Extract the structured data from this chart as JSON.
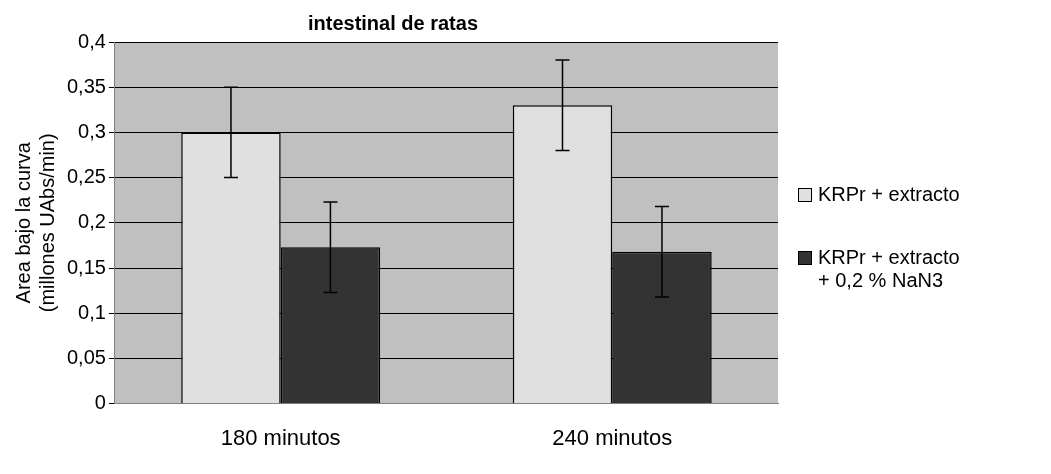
{
  "chart_data": {
    "type": "bar",
    "title": "intestinal de ratas",
    "ylabel": "Area bajo la curva\n(millones UAbs/min)",
    "categories": [
      "180 minutos",
      "240 minutos"
    ],
    "series": [
      {
        "name": "KRPr + extracto",
        "color": "#e0e0e0",
        "values": [
          0.3,
          0.33
        ],
        "errors": [
          0.05,
          0.05
        ]
      },
      {
        "name": "KRPr + extracto\n+ 0,2 % NaN3",
        "color": "#333333",
        "values": [
          0.173,
          0.168
        ],
        "errors": [
          0.05,
          0.05
        ]
      }
    ],
    "ylim": [
      0,
      0.4
    ],
    "yticks": [
      {
        "value": 0,
        "label": "0"
      },
      {
        "value": 0.05,
        "label": "0,05"
      },
      {
        "value": 0.1,
        "label": "0,1"
      },
      {
        "value": 0.15,
        "label": "0,15"
      },
      {
        "value": 0.2,
        "label": "0,2"
      },
      {
        "value": 0.25,
        "label": "0,25"
      },
      {
        "value": 0.3,
        "label": "0,3"
      },
      {
        "value": 0.35,
        "label": "0,35"
      },
      {
        "value": 0.4,
        "label": "0,4"
      }
    ],
    "grid": "y",
    "legend": "right"
  }
}
